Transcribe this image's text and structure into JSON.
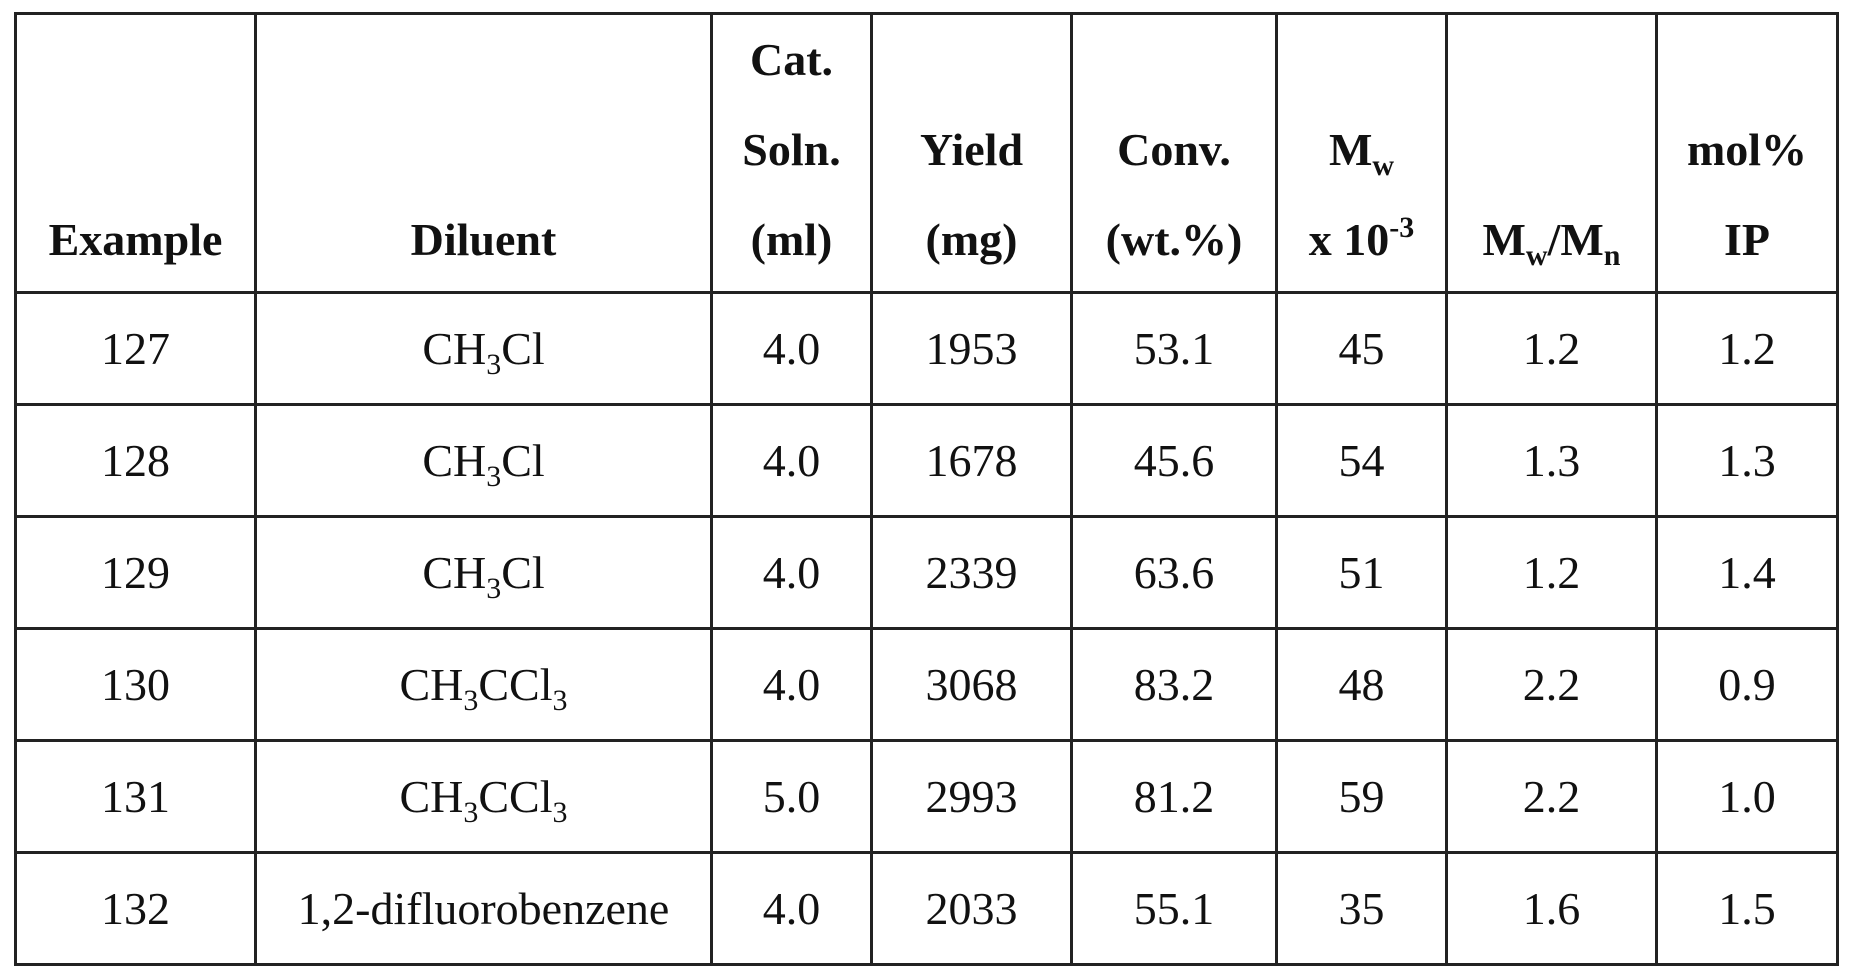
{
  "table": {
    "headers": {
      "example": "Example",
      "diluent": "Diluent",
      "cat_soln": {
        "line1": "Cat.",
        "line2": "Soln.",
        "line3": "(ml)"
      },
      "yield": {
        "line1": "Yield",
        "line2": "(mg)"
      },
      "conv": {
        "line1": "Conv.",
        "line2": "(wt.%)"
      },
      "mw": {
        "symbol": "M",
        "sub": "w",
        "prefix": "x 10",
        "exp": "-3"
      },
      "mwmn": {
        "m1": "M",
        "sub1": "w",
        "slash": "/M",
        "sub2": "n"
      },
      "mol_ip": {
        "line1": "mol%",
        "line2": "IP"
      }
    },
    "rows": [
      {
        "example": "127",
        "diluent": {
          "a": "CH",
          "a_sub": "3",
          "b": "Cl",
          "b_sub": ""
        },
        "cat_soln": "4.0",
        "yield": "1953",
        "conv": "53.1",
        "mw": "45",
        "mwmn": "1.2",
        "mol_ip": "1.2"
      },
      {
        "example": "128",
        "diluent": {
          "a": "CH",
          "a_sub": "3",
          "b": "Cl",
          "b_sub": ""
        },
        "cat_soln": "4.0",
        "yield": "1678",
        "conv": "45.6",
        "mw": "54",
        "mwmn": "1.3",
        "mol_ip": "1.3"
      },
      {
        "example": "129",
        "diluent": {
          "a": "CH",
          "a_sub": "3",
          "b": "Cl",
          "b_sub": ""
        },
        "cat_soln": "4.0",
        "yield": "2339",
        "conv": "63.6",
        "mw": "51",
        "mwmn": "1.2",
        "mol_ip": "1.4"
      },
      {
        "example": "130",
        "diluent": {
          "a": "CH",
          "a_sub": "3",
          "b": "CCl",
          "b_sub": "3"
        },
        "cat_soln": "4.0",
        "yield": "3068",
        "conv": "83.2",
        "mw": "48",
        "mwmn": "2.2",
        "mol_ip": "0.9"
      },
      {
        "example": "131",
        "diluent": {
          "a": "CH",
          "a_sub": "3",
          "b": "CCl",
          "b_sub": "3"
        },
        "cat_soln": "5.0",
        "yield": "2993",
        "conv": "81.2",
        "mw": "59",
        "mwmn": "2.2",
        "mol_ip": "1.0"
      },
      {
        "example": "132",
        "diluent": {
          "plain": "1,2-difluorobenzene"
        },
        "cat_soln": "4.0",
        "yield": "2033",
        "conv": "55.1",
        "mw": "35",
        "mwmn": "1.6",
        "mol_ip": "1.5"
      }
    ]
  }
}
